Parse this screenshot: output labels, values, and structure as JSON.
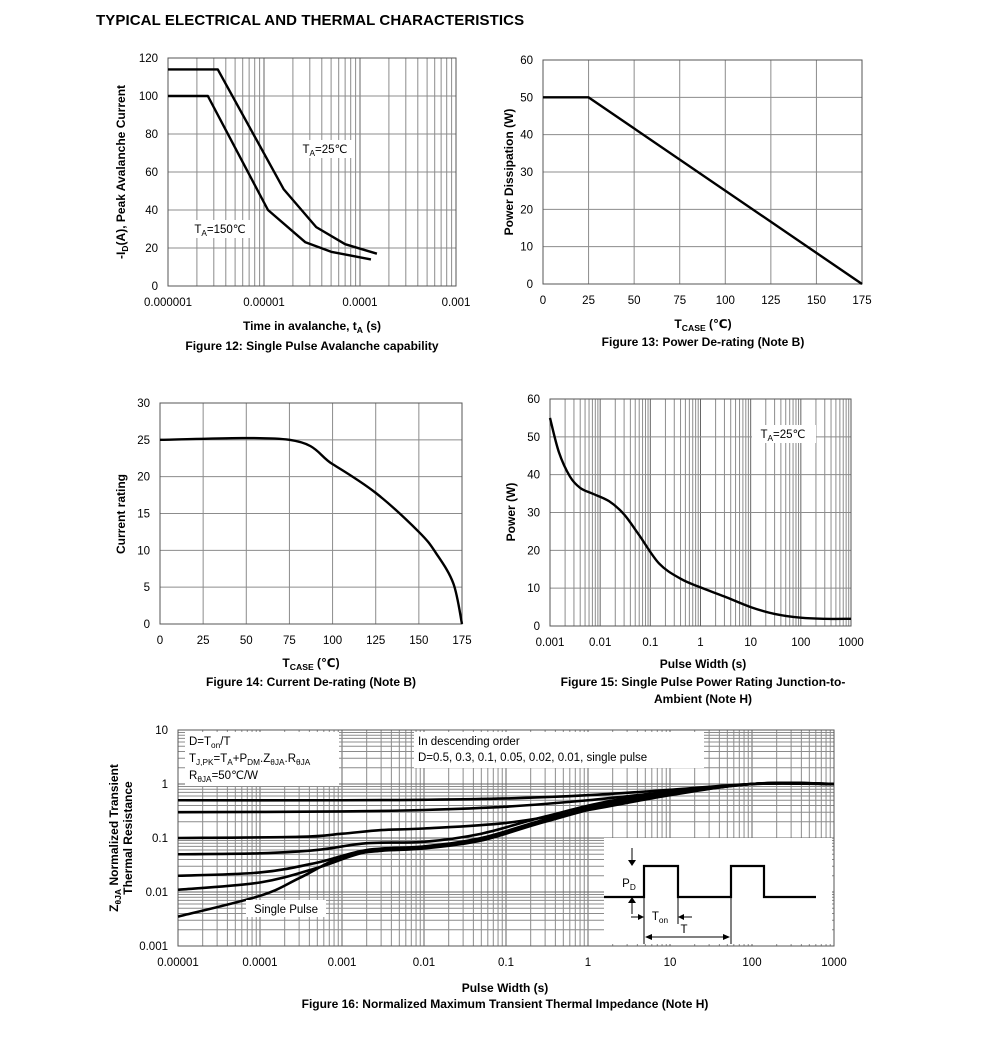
{
  "page_title": "TYPICAL ELECTRICAL AND THERMAL CHARACTERISTICS",
  "chart_data": [
    {
      "id": "fig12",
      "type": "line",
      "caption": "Figure 12: Single Pulse Avalanche capability",
      "xlabel": "Time in avalanche, t",
      "xlabel_sub": "A",
      "xlabel_unit": " (s)",
      "ylabel": "-I",
      "ylabel_sub": "D",
      "ylabel_rest": "(A), Peak Avalanche Current",
      "x_scale": "log",
      "xlim": [
        1e-06,
        0.001
      ],
      "ylim": [
        0,
        120
      ],
      "x_ticks": [
        1e-06,
        1e-05,
        0.0001,
        0.001
      ],
      "x_tick_labels": [
        "0.000001",
        "0.00001",
        "0.0001",
        "0.001"
      ],
      "y_ticks": [
        0,
        20,
        40,
        60,
        80,
        100,
        120
      ],
      "y_tick_labels": [
        "0",
        "20",
        "40",
        "60",
        "80",
        "100",
        "120"
      ],
      "series": [
        {
          "name": "T_A=25℃",
          "label_main": "T",
          "label_sub": "A",
          "label_rest": "=25℃",
          "x": [
            1e-06,
            3.3e-06,
            1.6e-05,
            3.5e-05,
            7e-05,
            0.00015
          ],
          "y": [
            114,
            114,
            51,
            31,
            22,
            17
          ]
        },
        {
          "name": "T_A=150℃",
          "label_main": "T",
          "label_sub": "A",
          "label_rest": "=150℃",
          "x": [
            1e-06,
            2.6e-06,
            1.1e-05,
            2.7e-05,
            5e-05,
            0.00013
          ],
          "y": [
            100,
            100,
            40,
            23,
            18,
            14
          ]
        }
      ]
    },
    {
      "id": "fig13",
      "type": "line",
      "caption": "Figure 13: Power De-rating (Note B)",
      "xlabel": "T",
      "xlabel_sub": "CASE",
      "xlabel_unit": " (℃)",
      "ylabel": "Power Dissipation (W)",
      "x_scale": "linear",
      "xlim": [
        0,
        175
      ],
      "ylim": [
        0,
        60
      ],
      "x_ticks": [
        0,
        25,
        50,
        75,
        100,
        125,
        150,
        175
      ],
      "x_tick_labels": [
        "0",
        "25",
        "50",
        "75",
        "100",
        "125",
        "150",
        "175"
      ],
      "y_ticks": [
        0,
        10,
        20,
        30,
        40,
        50,
        60
      ],
      "y_tick_labels": [
        "0",
        "10",
        "20",
        "30",
        "40",
        "50",
        "60"
      ],
      "series": [
        {
          "x": [
            0,
            25,
            175
          ],
          "y": [
            50,
            50,
            0
          ]
        }
      ]
    },
    {
      "id": "fig14",
      "type": "line",
      "caption": "Figure 14: Current De-rating (Note B)",
      "xlabel": "T",
      "xlabel_sub": "CASE",
      "xlabel_unit": " (℃)",
      "ylabel": "Current rating",
      "x_scale": "linear",
      "xlim": [
        0,
        175
      ],
      "ylim": [
        0,
        30
      ],
      "x_ticks": [
        0,
        25,
        50,
        75,
        100,
        125,
        150,
        175
      ],
      "x_tick_labels": [
        "0",
        "25",
        "50",
        "75",
        "100",
        "125",
        "150",
        "175"
      ],
      "y_ticks": [
        0,
        5,
        10,
        15,
        20,
        25,
        30
      ],
      "y_tick_labels": [
        "0",
        "5",
        "10",
        "15",
        "20",
        "25",
        "30"
      ],
      "series": [
        {
          "x": [
            0,
            75,
            100,
            125,
            150,
            160,
            170,
            175
          ],
          "y": [
            25,
            25,
            21.7,
            17.8,
            12.5,
            9.6,
            5.5,
            0
          ]
        }
      ]
    },
    {
      "id": "fig15",
      "type": "line",
      "caption": "Figure 15: Single Pulse Power Rating Junction-to-",
      "caption2": "Ambient (Note H)",
      "xlabel": "Pulse Width (s)",
      "ylabel": "Power (W)",
      "x_scale": "log",
      "xlim": [
        0.001,
        1000
      ],
      "ylim": [
        0,
        60
      ],
      "x_ticks": [
        0.001,
        0.01,
        0.1,
        1,
        10,
        100,
        1000
      ],
      "x_tick_labels": [
        "0.001",
        "0.01",
        "0.1",
        "1",
        "10",
        "100",
        "1000"
      ],
      "y_ticks": [
        0,
        10,
        20,
        30,
        40,
        50,
        60
      ],
      "y_tick_labels": [
        "0",
        "10",
        "20",
        "30",
        "40",
        "50",
        "60"
      ],
      "annotation": {
        "main": "T",
        "sub": "A",
        "rest": "=25℃"
      },
      "series": [
        {
          "x": [
            0.001,
            0.0015,
            0.0025,
            0.004,
            0.007,
            0.015,
            0.03,
            0.06,
            0.15,
            0.4,
            1,
            3,
            10,
            30,
            100,
            300,
            1000
          ],
          "y": [
            55,
            46,
            39.5,
            36.5,
            35,
            33,
            29.5,
            24,
            16.5,
            12.5,
            10.2,
            7.8,
            5,
            3.2,
            2.2,
            1.9,
            1.9
          ]
        }
      ]
    },
    {
      "id": "fig16",
      "type": "line",
      "caption": "Figure 16: Normalized Maximum Transient Thermal Impedance (Note H)",
      "xlabel": "Pulse Width (s)",
      "ylabel_line1_main": "Z",
      "ylabel_line1_sub": "θJA",
      "ylabel_line1_rest": " Normalized Transient",
      "ylabel_line2": "Thermal Resistance",
      "x_scale": "log",
      "y_scale": "log",
      "xlim": [
        1e-05,
        1000
      ],
      "ylim": [
        0.001,
        10
      ],
      "x_ticks": [
        1e-05,
        0.0001,
        0.001,
        0.01,
        0.1,
        1,
        10,
        100,
        1000
      ],
      "x_tick_labels": [
        "0.00001",
        "0.0001",
        "0.001",
        "0.01",
        "0.1",
        "1",
        "10",
        "100",
        "1000"
      ],
      "y_ticks": [
        0.001,
        0.01,
        0.1,
        1,
        10
      ],
      "y_tick_labels": [
        "0.001",
        "0.01",
        "0.1",
        "1",
        "10"
      ],
      "notes_left": [
        "D=T",
        "T",
        "R"
      ],
      "notes_left_full": [
        "D=Ton/T",
        "TJ,PK=TA+PDM.ZθJA.RθJA",
        "RθJA=50℃/W"
      ],
      "notes_right": [
        "In descending order",
        "D=0.5, 0.3, 0.1, 0.05, 0.02, 0.01, single pulse"
      ],
      "single_pulse_label": "Single Pulse",
      "inset_labels": {
        "pd": "P",
        "pd_sub": "D",
        "ton": "T",
        "ton_sub": "on",
        "t": "T"
      },
      "series": [
        {
          "x": [
            1e-05,
            0.001,
            0.01,
            0.1,
            1,
            10,
            100,
            1000
          ],
          "y": [
            0.5,
            0.5,
            0.51,
            0.54,
            0.62,
            0.78,
            1,
            1
          ]
        },
        {
          "x": [
            1e-05,
            0.001,
            0.01,
            0.1,
            1,
            10,
            100,
            1000
          ],
          "y": [
            0.3,
            0.31,
            0.33,
            0.38,
            0.5,
            0.72,
            1,
            1
          ]
        },
        {
          "x": [
            1e-05,
            0.0003,
            0.001,
            0.003,
            0.01,
            0.1,
            1,
            10,
            100,
            1000
          ],
          "y": [
            0.1,
            0.105,
            0.12,
            0.14,
            0.15,
            0.19,
            0.33,
            0.62,
            1,
            1
          ]
        },
        {
          "x": [
            1e-05,
            0.0001,
            0.0005,
            0.002,
            0.01,
            0.05,
            0.3,
            3,
            100,
            1000
          ],
          "y": [
            0.05,
            0.052,
            0.06,
            0.08,
            0.085,
            0.12,
            0.25,
            0.55,
            1,
            1
          ]
        },
        {
          "x": [
            1e-05,
            0.0001,
            0.0005,
            0.002,
            0.01,
            0.05,
            0.3,
            3,
            100,
            1000
          ],
          "y": [
            0.02,
            0.023,
            0.035,
            0.06,
            0.07,
            0.1,
            0.22,
            0.52,
            1,
            1
          ]
        },
        {
          "x": [
            1e-05,
            0.0001,
            0.0005,
            0.002,
            0.01,
            0.05,
            0.3,
            3,
            100,
            1000
          ],
          "y": [
            0.011,
            0.015,
            0.028,
            0.055,
            0.066,
            0.095,
            0.21,
            0.5,
            1,
            1
          ]
        },
        {
          "name": "single pulse",
          "x": [
            1e-05,
            0.0001,
            0.0003,
            0.001,
            0.003,
            0.01,
            0.05,
            0.3,
            3,
            100,
            1000
          ],
          "y": [
            0.0035,
            0.0085,
            0.018,
            0.045,
            0.058,
            0.064,
            0.09,
            0.2,
            0.48,
            1,
            1
          ]
        }
      ]
    }
  ]
}
